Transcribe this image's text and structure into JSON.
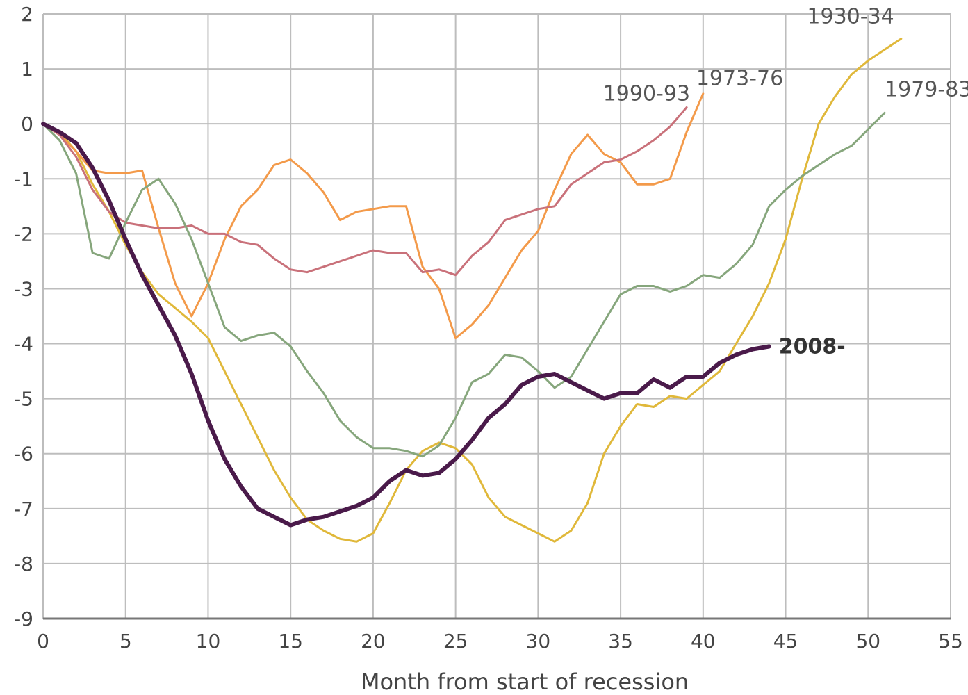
{
  "chart_data": {
    "type": "line",
    "title": "",
    "xlabel": "Month from start of recession",
    "ylabel": "",
    "xlim": [
      0,
      55
    ],
    "ylim": [
      -9,
      2
    ],
    "xticks": [
      0,
      5,
      10,
      15,
      20,
      25,
      30,
      35,
      40,
      45,
      50,
      55
    ],
    "yticks": [
      2,
      1,
      0,
      -1,
      -2,
      -3,
      -4,
      -5,
      -6,
      -7,
      -8,
      -9
    ],
    "grid": true,
    "legend": "inline labels at line ends",
    "series": [
      {
        "name": "1930-34",
        "color": "#e0b83a",
        "points": [
          [
            0,
            0
          ],
          [
            1,
            -0.15
          ],
          [
            2,
            -0.5
          ],
          [
            3,
            -1.1
          ],
          [
            4,
            -1.6
          ],
          [
            5,
            -2.2
          ],
          [
            6,
            -2.7
          ],
          [
            7,
            -3.1
          ],
          [
            8,
            -3.35
          ],
          [
            9,
            -3.6
          ],
          [
            10,
            -3.9
          ],
          [
            11,
            -4.5
          ],
          [
            12,
            -5.1
          ],
          [
            13,
            -5.7
          ],
          [
            14,
            -6.3
          ],
          [
            15,
            -6.8
          ],
          [
            16,
            -7.2
          ],
          [
            17,
            -7.4
          ],
          [
            18,
            -7.55
          ],
          [
            19,
            -7.6
          ],
          [
            20,
            -7.45
          ],
          [
            21,
            -6.9
          ],
          [
            22,
            -6.3
          ],
          [
            23,
            -5.95
          ],
          [
            24,
            -5.8
          ],
          [
            25,
            -5.9
          ],
          [
            26,
            -6.2
          ],
          [
            27,
            -6.8
          ],
          [
            28,
            -7.15
          ],
          [
            29,
            -7.3
          ],
          [
            30,
            -7.45
          ],
          [
            31,
            -7.6
          ],
          [
            32,
            -7.4
          ],
          [
            33,
            -6.9
          ],
          [
            34,
            -6.0
          ],
          [
            35,
            -5.5
          ],
          [
            36,
            -5.1
          ],
          [
            37,
            -5.15
          ],
          [
            38,
            -4.95
          ],
          [
            39,
            -5.0
          ],
          [
            40,
            -4.75
          ],
          [
            41,
            -4.5
          ],
          [
            42,
            -4.0
          ],
          [
            43,
            -3.5
          ],
          [
            44,
            -2.9
          ],
          [
            45,
            -2.1
          ],
          [
            46,
            -1.0
          ],
          [
            47,
            0.0
          ],
          [
            48,
            0.5
          ],
          [
            49,
            0.9
          ],
          [
            50,
            1.15
          ],
          [
            51,
            1.35
          ],
          [
            52,
            1.55
          ]
        ]
      },
      {
        "name": "1973-76",
        "color": "#f39a4a",
        "points": [
          [
            0,
            0
          ],
          [
            1,
            -0.2
          ],
          [
            2,
            -0.5
          ],
          [
            3,
            -0.85
          ],
          [
            4,
            -0.9
          ],
          [
            5,
            -0.9
          ],
          [
            6,
            -0.85
          ],
          [
            7,
            -1.9
          ],
          [
            8,
            -2.9
          ],
          [
            9,
            -3.5
          ],
          [
            10,
            -2.9
          ],
          [
            11,
            -2.1
          ],
          [
            12,
            -1.5
          ],
          [
            13,
            -1.2
          ],
          [
            14,
            -0.75
          ],
          [
            15,
            -0.65
          ],
          [
            16,
            -0.9
          ],
          [
            17,
            -1.25
          ],
          [
            18,
            -1.75
          ],
          [
            19,
            -1.6
          ],
          [
            20,
            -1.55
          ],
          [
            21,
            -1.5
          ],
          [
            22,
            -1.5
          ],
          [
            23,
            -2.6
          ],
          [
            24,
            -3.0
          ],
          [
            25,
            -3.9
          ],
          [
            26,
            -3.65
          ],
          [
            27,
            -3.3
          ],
          [
            28,
            -2.8
          ],
          [
            29,
            -2.3
          ],
          [
            30,
            -1.95
          ],
          [
            31,
            -1.2
          ],
          [
            32,
            -0.55
          ],
          [
            33,
            -0.2
          ],
          [
            34,
            -0.55
          ],
          [
            35,
            -0.7
          ],
          [
            36,
            -1.1
          ],
          [
            37,
            -1.1
          ],
          [
            38,
            -1.0
          ],
          [
            39,
            -0.15
          ],
          [
            40,
            0.55
          ]
        ]
      },
      {
        "name": "1990-93",
        "color": "#c9717a",
        "points": [
          [
            0,
            0
          ],
          [
            1,
            -0.2
          ],
          [
            2,
            -0.6
          ],
          [
            3,
            -1.2
          ],
          [
            4,
            -1.6
          ],
          [
            5,
            -1.8
          ],
          [
            6,
            -1.85
          ],
          [
            7,
            -1.9
          ],
          [
            8,
            -1.9
          ],
          [
            9,
            -1.85
          ],
          [
            10,
            -2.0
          ],
          [
            11,
            -2.0
          ],
          [
            12,
            -2.15
          ],
          [
            13,
            -2.2
          ],
          [
            14,
            -2.45
          ],
          [
            15,
            -2.65
          ],
          [
            16,
            -2.7
          ],
          [
            17,
            -2.6
          ],
          [
            18,
            -2.5
          ],
          [
            19,
            -2.4
          ],
          [
            20,
            -2.3
          ],
          [
            21,
            -2.35
          ],
          [
            22,
            -2.35
          ],
          [
            23,
            -2.7
          ],
          [
            24,
            -2.65
          ],
          [
            25,
            -2.75
          ],
          [
            26,
            -2.4
          ],
          [
            27,
            -2.15
          ],
          [
            28,
            -1.75
          ],
          [
            29,
            -1.65
          ],
          [
            30,
            -1.55
          ],
          [
            31,
            -1.5
          ],
          [
            32,
            -1.1
          ],
          [
            33,
            -0.9
          ],
          [
            34,
            -0.7
          ],
          [
            35,
            -0.65
          ],
          [
            36,
            -0.5
          ],
          [
            37,
            -0.3
          ],
          [
            38,
            -0.05
          ],
          [
            39,
            0.3
          ]
        ]
      },
      {
        "name": "1979-83",
        "color": "#86a67c",
        "points": [
          [
            0,
            0
          ],
          [
            1,
            -0.3
          ],
          [
            2,
            -0.9
          ],
          [
            3,
            -2.35
          ],
          [
            4,
            -2.45
          ],
          [
            5,
            -1.8
          ],
          [
            6,
            -1.2
          ],
          [
            7,
            -1.0
          ],
          [
            8,
            -1.45
          ],
          [
            9,
            -2.1
          ],
          [
            10,
            -2.9
          ],
          [
            11,
            -3.7
          ],
          [
            12,
            -3.95
          ],
          [
            13,
            -3.85
          ],
          [
            14,
            -3.8
          ],
          [
            15,
            -4.05
          ],
          [
            16,
            -4.5
          ],
          [
            17,
            -4.9
          ],
          [
            18,
            -5.4
          ],
          [
            19,
            -5.7
          ],
          [
            20,
            -5.9
          ],
          [
            21,
            -5.9
          ],
          [
            22,
            -5.95
          ],
          [
            23,
            -6.05
          ],
          [
            24,
            -5.85
          ],
          [
            25,
            -5.35
          ],
          [
            26,
            -4.7
          ],
          [
            27,
            -4.55
          ],
          [
            28,
            -4.2
          ],
          [
            29,
            -4.25
          ],
          [
            30,
            -4.5
          ],
          [
            31,
            -4.8
          ],
          [
            32,
            -4.6
          ],
          [
            33,
            -4.1
          ],
          [
            34,
            -3.6
          ],
          [
            35,
            -3.1
          ],
          [
            36,
            -2.95
          ],
          [
            37,
            -2.95
          ],
          [
            38,
            -3.05
          ],
          [
            39,
            -2.95
          ],
          [
            40,
            -2.75
          ],
          [
            41,
            -2.8
          ],
          [
            42,
            -2.55
          ],
          [
            43,
            -2.2
          ],
          [
            44,
            -1.5
          ],
          [
            45,
            -1.2
          ],
          [
            46,
            -0.95
          ],
          [
            47,
            -0.75
          ],
          [
            48,
            -0.55
          ],
          [
            49,
            -0.4
          ],
          [
            50,
            -0.1
          ],
          [
            51,
            0.2
          ]
        ]
      },
      {
        "name": "2008-",
        "color": "#4a1a4a",
        "bold": true,
        "points": [
          [
            0,
            0
          ],
          [
            1,
            -0.15
          ],
          [
            2,
            -0.35
          ],
          [
            3,
            -0.8
          ],
          [
            4,
            -1.4
          ],
          [
            5,
            -2.1
          ],
          [
            6,
            -2.75
          ],
          [
            7,
            -3.3
          ],
          [
            8,
            -3.85
          ],
          [
            9,
            -4.55
          ],
          [
            10,
            -5.4
          ],
          [
            11,
            -6.1
          ],
          [
            12,
            -6.6
          ],
          [
            13,
            -7.0
          ],
          [
            14,
            -7.15
          ],
          [
            15,
            -7.3
          ],
          [
            16,
            -7.2
          ],
          [
            17,
            -7.15
          ],
          [
            18,
            -7.05
          ],
          [
            19,
            -6.95
          ],
          [
            20,
            -6.8
          ],
          [
            21,
            -6.5
          ],
          [
            22,
            -6.3
          ],
          [
            23,
            -6.4
          ],
          [
            24,
            -6.35
          ],
          [
            25,
            -6.1
          ],
          [
            26,
            -5.75
          ],
          [
            27,
            -5.35
          ],
          [
            28,
            -5.1
          ],
          [
            29,
            -4.75
          ],
          [
            30,
            -4.6
          ],
          [
            31,
            -4.55
          ],
          [
            32,
            -4.7
          ],
          [
            33,
            -4.85
          ],
          [
            34,
            -5.0
          ],
          [
            35,
            -4.9
          ],
          [
            36,
            -4.9
          ],
          [
            37,
            -4.65
          ],
          [
            38,
            -4.8
          ],
          [
            39,
            -4.6
          ],
          [
            40,
            -4.6
          ],
          [
            41,
            -4.35
          ],
          [
            42,
            -4.2
          ],
          [
            43,
            -4.1
          ],
          [
            44,
            -4.05
          ]
        ]
      }
    ]
  }
}
